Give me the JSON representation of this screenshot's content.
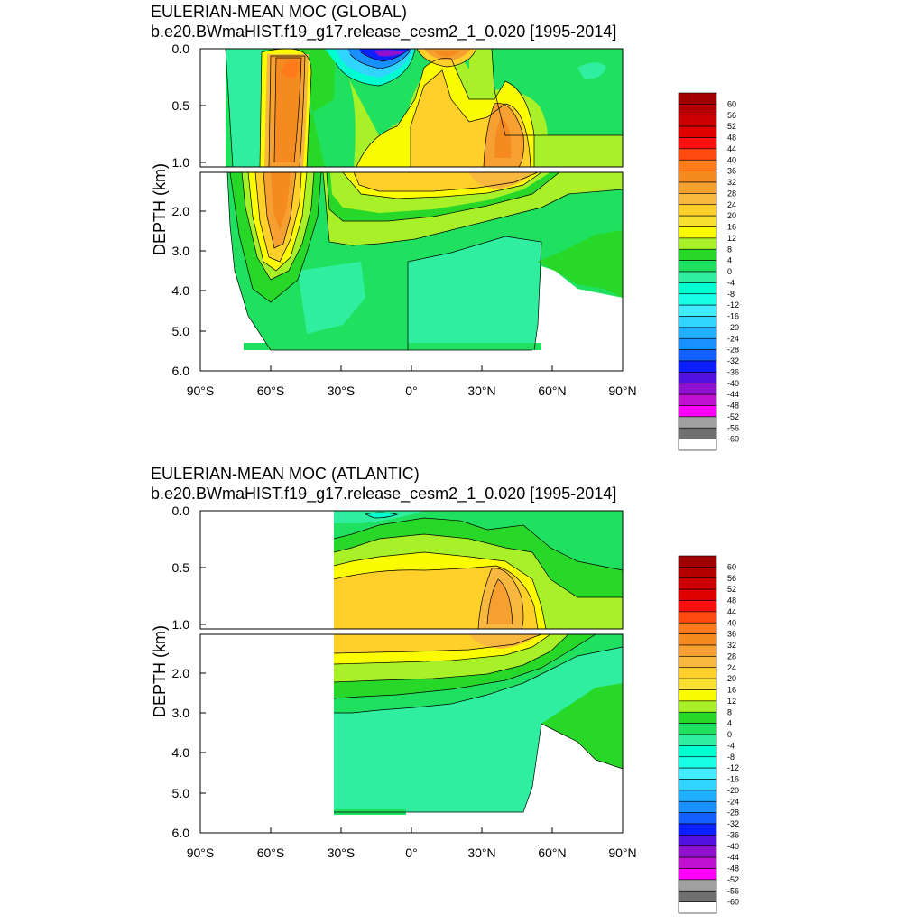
{
  "chart_data": [
    {
      "type": "contour",
      "title": "EULERIAN-MEAN MOC (GLOBAL)",
      "subtitle": "b.e20.BWmaHIST.f19_g17.release_cesm2_1_0.020 [1995-2014]",
      "xlabel": "",
      "ylabel": "DEPTH (km)",
      "xlim": [
        -90,
        90
      ],
      "x_ticks": [
        "90°S",
        "60°S",
        "30°S",
        "0°",
        "30°N",
        "60°N",
        "90°N"
      ],
      "y_ticks_upper": [
        "0.0",
        "0.5",
        "1.0"
      ],
      "y_ticks_lower": [
        "2.0",
        "3.0",
        "4.0",
        "5.0",
        "6.0"
      ],
      "ylim_upper": [
        0,
        1
      ],
      "ylim_lower": [
        1,
        6
      ],
      "features": [
        {
          "feature": "southern-ocean-cell",
          "lat_center": -52,
          "depth_range_km": [
            0,
            4.0
          ],
          "value": 36
        },
        {
          "feature": "deacon-negative-cell",
          "lat_center": -20,
          "depth_range_km": [
            0,
            0.2
          ],
          "value": -40
        },
        {
          "feature": "north-subtropical-cell",
          "lat_center": 12,
          "depth_range_km": [
            0,
            0.15
          ],
          "value": 32
        },
        {
          "feature": "amoc-upper-cell",
          "lat_center": 35,
          "depth_range_km": [
            0.3,
            2.0
          ],
          "value": 28
        },
        {
          "feature": "abyssal-cell",
          "lat_center": 10,
          "depth_range_km": [
            3.0,
            5.5
          ],
          "value": -4
        }
      ]
    },
    {
      "type": "contour",
      "title": "EULERIAN-MEAN MOC (ATLANTIC)",
      "subtitle": "b.e20.BWmaHIST.f19_g17.release_cesm2_1_0.020 [1995-2014]",
      "xlabel": "",
      "ylabel": "DEPTH (km)",
      "xlim": [
        -90,
        90
      ],
      "x_ticks": [
        "90°S",
        "60°S",
        "30°S",
        "0°",
        "30°N",
        "60°N",
        "90°N"
      ],
      "y_ticks_upper": [
        "0.0",
        "0.5",
        "1.0"
      ],
      "y_ticks_lower": [
        "2.0",
        "3.0",
        "4.0",
        "5.0",
        "6.0"
      ],
      "ylim_upper": [
        0,
        1
      ],
      "ylim_lower": [
        1,
        6
      ],
      "data_lat_range": [
        -34,
        90
      ],
      "features": [
        {
          "feature": "amoc-upper-cell",
          "lat_center": 36,
          "depth_range_km": [
            0.2,
            2.0
          ],
          "value": 28
        },
        {
          "feature": "surface-negative-cell",
          "lat_center": -15,
          "depth_range_km": [
            0,
            0.05
          ],
          "value": -4
        },
        {
          "feature": "abyssal-cell",
          "lat_center": 10,
          "depth_range_km": [
            3.0,
            5.5
          ],
          "value": -4
        }
      ]
    }
  ],
  "colorbar": {
    "labels": [
      "60",
      "56",
      "52",
      "48",
      "44",
      "40",
      "36",
      "32",
      "28",
      "24",
      "20",
      "16",
      "12",
      "8",
      "4",
      "0",
      "-4",
      "-8",
      "-12",
      "-16",
      "-20",
      "-24",
      "-28",
      "-32",
      "-36",
      "-40",
      "-44",
      "-48",
      "-52",
      "-56",
      "-60"
    ],
    "colors": [
      "#a00000",
      "#b40000",
      "#cc0000",
      "#e00000",
      "#ff1010",
      "#ff4a10",
      "#ff7a1a",
      "#f58a20",
      "#f5a030",
      "#f8b840",
      "#ffd02a",
      "#f8e030",
      "#fcfc00",
      "#a8f028",
      "#28d828",
      "#20e060",
      "#30eea0",
      "#00ffd0",
      "#18ffe8",
      "#40ecff",
      "#30d4ff",
      "#20b0ff",
      "#1890ff",
      "#1460ff",
      "#0c20ff",
      "#5010e0",
      "#9010d0",
      "#c010d0",
      "#ff00ff",
      "#a0a0a0",
      "#707070",
      "#ffffff"
    ]
  }
}
